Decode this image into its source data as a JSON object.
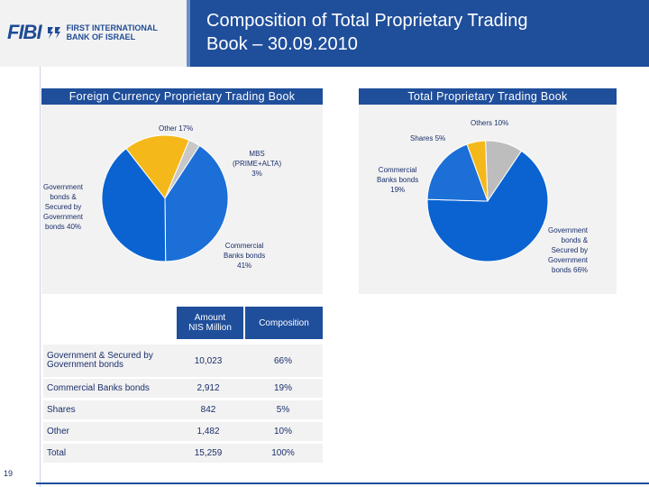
{
  "header": {
    "logo_brand": "FIBI",
    "logo_line1": "FIRST INTERNATIONAL",
    "logo_line2": "BANK OF ISRAEL",
    "title_line1": "Composition of Total Proprietary Trading",
    "title_line2": "Book – 30.09.2010"
  },
  "colors": {
    "government": "#0a63d1",
    "commercial": "#0a63d1",
    "shares": "#f5b81a",
    "other": "#bdbdbd",
    "mbs": "#c8c8c8",
    "header_blue": "#1f4e9b"
  },
  "chart_data": [
    {
      "type": "pie",
      "title": "Foreign Currency Proprietary Trading Book",
      "slices": [
        {
          "key": "other",
          "label_lines": [
            "Other 17%"
          ],
          "value": 17,
          "color": "#f5b81a"
        },
        {
          "key": "mbs",
          "label_lines": [
            "MBS",
            "(PRIME+ALTA)",
            "3%"
          ],
          "value": 3,
          "color": "#c8c8c8"
        },
        {
          "key": "commercial",
          "label_lines": [
            "Commercial",
            "Banks bonds",
            "41%"
          ],
          "value": 41,
          "color": "#1c6fd6"
        },
        {
          "key": "government",
          "label_lines": [
            "Government",
            "bonds &",
            "Secured by",
            "Government",
            "bonds 40%"
          ],
          "value": 40,
          "color": "#0a63d1"
        }
      ]
    },
    {
      "type": "pie",
      "title": "Total Proprietary Trading Book",
      "slices": [
        {
          "key": "others",
          "label_lines": [
            "Others 10%"
          ],
          "value": 10,
          "color": "#bdbdbd"
        },
        {
          "key": "government",
          "label_lines": [
            "Government",
            "bonds &",
            "Secured by",
            "Government",
            "bonds 66%"
          ],
          "value": 66,
          "color": "#0a63d1"
        },
        {
          "key": "commercial",
          "label_lines": [
            "Commercial",
            "Banks bonds",
            "19%"
          ],
          "value": 19,
          "color": "#1c6fd6"
        },
        {
          "key": "shares",
          "label_lines": [
            "Shares 5%"
          ],
          "value": 5,
          "color": "#f5b81a"
        }
      ]
    },
    {
      "type": "table",
      "columns": [
        "",
        "Amount NIS Million",
        "Composition"
      ],
      "rows": [
        {
          "label": "Government & Secured by Government bonds",
          "amount": "10,023",
          "pct": "66%"
        },
        {
          "label": "Commercial Banks bonds",
          "amount": "2,912",
          "pct": "19%"
        },
        {
          "label": "Shares",
          "amount": "842",
          "pct": "5%"
        },
        {
          "label": "Other",
          "amount": "1,482",
          "pct": "10%"
        },
        {
          "label": "Total",
          "amount": "15,259",
          "pct": "100%"
        }
      ]
    }
  ],
  "table_head": {
    "amount_line1": "Amount",
    "amount_line2": "NIS Million",
    "composition": "Composition"
  },
  "footer": {
    "page_number": "19"
  }
}
